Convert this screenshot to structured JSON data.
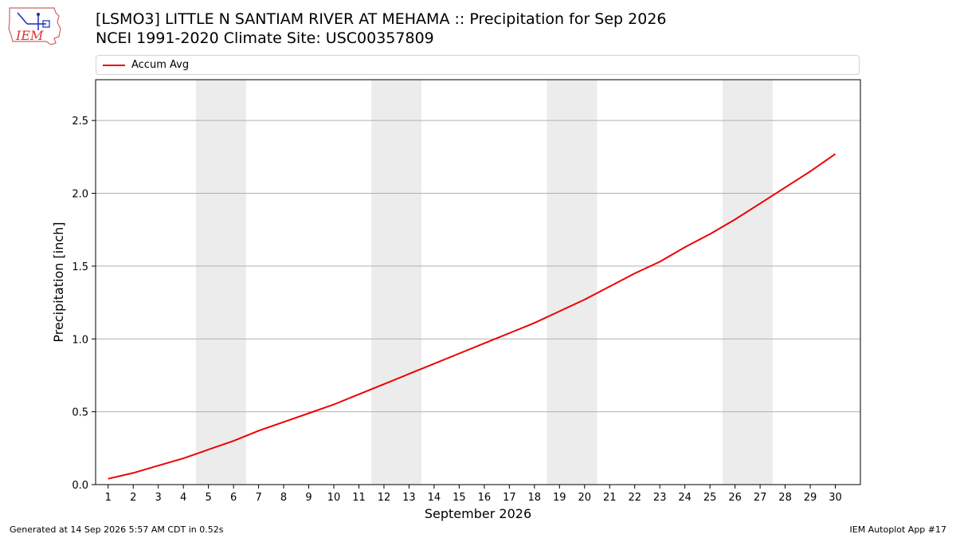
{
  "header": {
    "logo_text": "IEM",
    "title_line1": "[LSMO3] LITTLE N SANTIAM RIVER  AT MEHAMA :: Precipitation for Sep 2026",
    "title_line2": "NCEI 1991-2020 Climate Site: USC00357809"
  },
  "legend": {
    "label": "Accum Avg"
  },
  "footer": {
    "left": "Generated at 14 Sep 2026 5:57 AM CDT in 0.52s",
    "right": "IEM Autoplot App #17"
  },
  "colors": {
    "series": "#ee0000",
    "weekend_shade": "#ececec",
    "grid": "#b0b0b0"
  },
  "chart_data": {
    "type": "line",
    "title": "[LSMO3] LITTLE N SANTIAM RIVER  AT MEHAMA :: Precipitation for Sep 2026",
    "subtitle": "NCEI 1991-2020 Climate Site: USC00357809",
    "xlabel": "September 2026",
    "ylabel": "Precipitation [inch]",
    "xlim": [
      0.5,
      31
    ],
    "ylim": [
      0,
      2.78
    ],
    "x": [
      1,
      2,
      3,
      4,
      5,
      6,
      7,
      8,
      9,
      10,
      11,
      12,
      13,
      14,
      15,
      16,
      17,
      18,
      19,
      20,
      21,
      22,
      23,
      24,
      25,
      26,
      27,
      28,
      29,
      30
    ],
    "x_ticks": [
      "1",
      "2",
      "3",
      "4",
      "5",
      "6",
      "7",
      "8",
      "9",
      "10",
      "11",
      "12",
      "13",
      "14",
      "15",
      "16",
      "17",
      "18",
      "19",
      "20",
      "21",
      "22",
      "23",
      "24",
      "25",
      "26",
      "27",
      "28",
      "29",
      "30"
    ],
    "y_ticks": [
      0.0,
      0.5,
      1.0,
      1.5,
      2.0,
      2.5
    ],
    "y_tick_labels": [
      "0.0",
      "0.5",
      "1.0",
      "1.5",
      "2.0",
      "2.5"
    ],
    "series": [
      {
        "name": "Accum Avg",
        "color": "#ee0000",
        "values": [
          0.04,
          0.08,
          0.13,
          0.18,
          0.24,
          0.3,
          0.37,
          0.43,
          0.49,
          0.55,
          0.62,
          0.69,
          0.76,
          0.83,
          0.9,
          0.97,
          1.04,
          1.11,
          1.19,
          1.27,
          1.36,
          1.45,
          1.53,
          1.63,
          1.72,
          1.82,
          1.93,
          2.04,
          2.15,
          2.27
        ]
      }
    ],
    "weekend_bands": [
      [
        4.5,
        6.5
      ],
      [
        11.5,
        13.5
      ],
      [
        18.5,
        20.5
      ],
      [
        25.5,
        27.5
      ]
    ],
    "grid": "horizontal",
    "legend_position": "top"
  }
}
